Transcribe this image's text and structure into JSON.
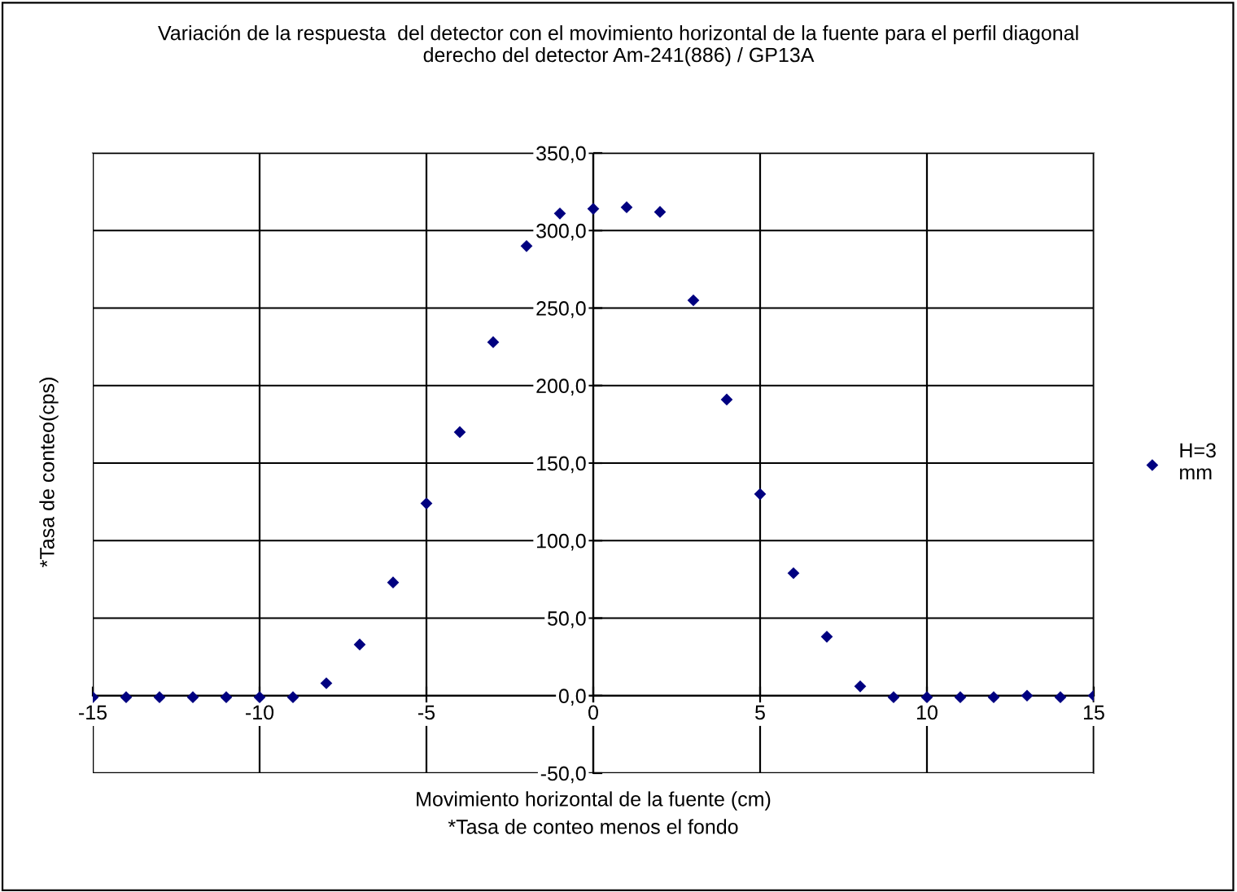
{
  "chart_data": {
    "type": "scatter",
    "title": "Variación de la respuesta  del detector con el movimiento horizontal de la fuente para el perfil diagonal derecho del detector Am-241(886) / GP13A",
    "xlabel": "Movimiento horizontal de la fuente (cm)",
    "ylabel": "*Tasa de conteo(cps)",
    "annotations": [
      "*Tasa de conteo menos el fondo"
    ],
    "x": [
      -15,
      -14,
      -13,
      -12,
      -11,
      -10,
      -9,
      -8,
      -7,
      -6,
      -5,
      -4,
      -3,
      -2,
      -1,
      0,
      1,
      2,
      3,
      4,
      5,
      6,
      7,
      8,
      9,
      10,
      11,
      12,
      13,
      14,
      15
    ],
    "series": [
      {
        "name": "H=3 mm",
        "color": "#000080",
        "values": [
          -1,
          -1,
          -1,
          -1,
          -1,
          -1,
          -1,
          8,
          33,
          73,
          124,
          170,
          228,
          290,
          311,
          314,
          315,
          312,
          255,
          191,
          130,
          79,
          38,
          6,
          -1,
          -1,
          -1,
          -1,
          0,
          -1,
          0
        ]
      }
    ],
    "xlim": [
      -15,
      15
    ],
    "xticks": [
      -15,
      -10,
      -5,
      0,
      5,
      10,
      15
    ],
    "ylim": [
      -50,
      350
    ],
    "yticks": [
      {
        "value": -50,
        "label": "-50,0"
      },
      {
        "value": 0,
        "label": "0,0"
      },
      {
        "value": 50,
        "label": "50,0"
      },
      {
        "value": 100,
        "label": "100,0"
      },
      {
        "value": 150,
        "label": "150,0"
      },
      {
        "value": 200,
        "label": "200,0"
      },
      {
        "value": 250,
        "label": "250,0"
      },
      {
        "value": 300,
        "label": "300,0"
      },
      {
        "value": 350,
        "label": "350,0"
      }
    ],
    "grid": true,
    "legend": "right",
    "marker": "diamond"
  }
}
